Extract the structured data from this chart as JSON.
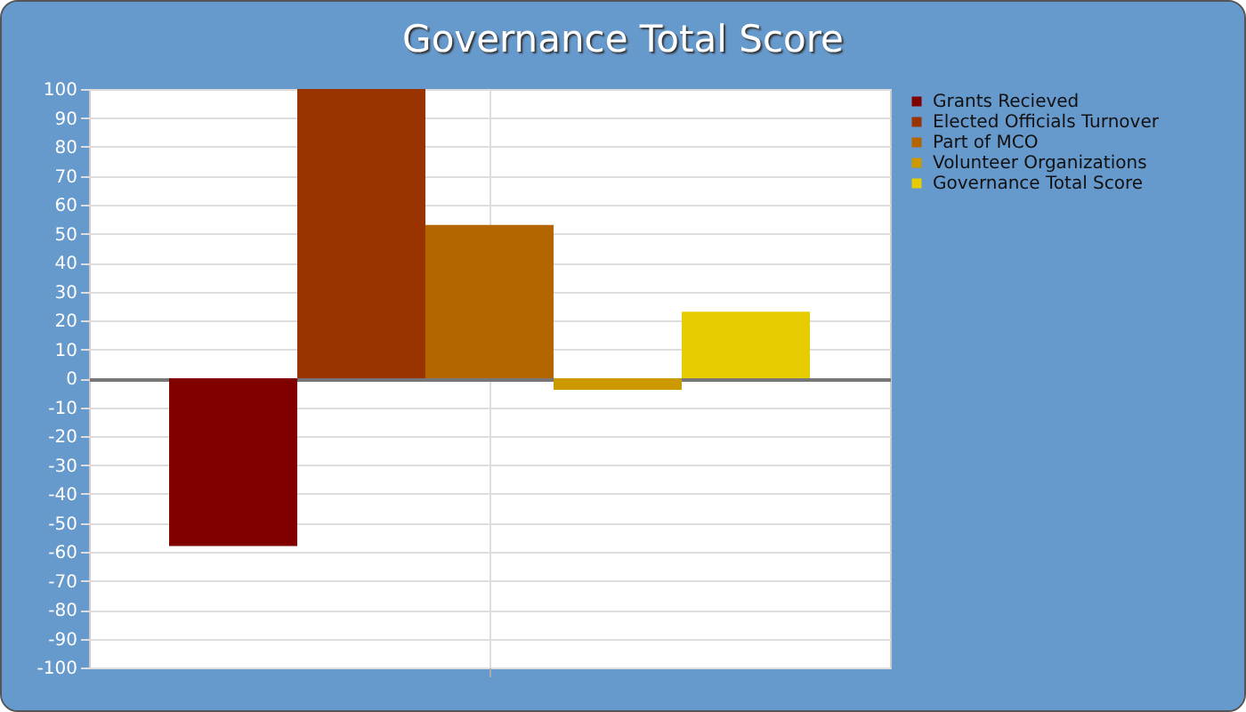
{
  "chart_data": {
    "type": "bar",
    "title": "Governance Total Score",
    "categories": [
      null
    ],
    "series": [
      {
        "name": "Grants Recieved",
        "color": "#800000",
        "values": [
          -58
        ]
      },
      {
        "name": "Elected Officials Turnover",
        "color": "#993300",
        "values": [
          100
        ]
      },
      {
        "name": "Part of MCO",
        "color": "#b36600",
        "values": [
          53
        ]
      },
      {
        "name": "Volunteer Organizations",
        "color": "#cc9900",
        "values": [
          -4
        ]
      },
      {
        "name": "Governance Total Score",
        "color": "#e6cc00",
        "values": [
          23
        ]
      }
    ],
    "ylim": [
      -100,
      100
    ],
    "yticks": [
      -100,
      -90,
      -80,
      -70,
      -60,
      -50,
      -40,
      -30,
      -20,
      -10,
      0,
      10,
      20,
      30,
      40,
      50,
      60,
      70,
      80,
      90,
      100
    ],
    "grid": true,
    "legend": "top right"
  }
}
